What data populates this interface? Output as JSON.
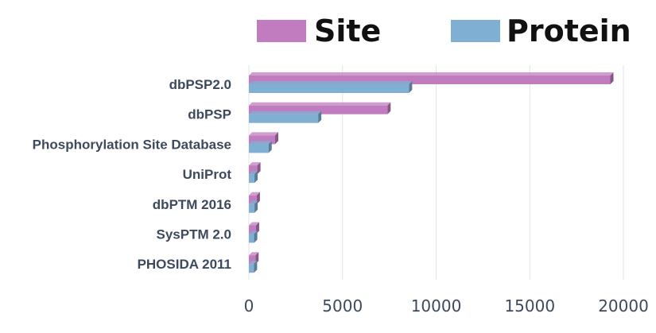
{
  "chart_data": {
    "type": "bar",
    "orientation": "horizontal",
    "categories": [
      "dbPSP2.0",
      "dbPSP",
      "Phosphorylation Site Database",
      "UniProt",
      "dbPTM 2016",
      "SysPTM 2.0",
      "PHOSIDA 2011"
    ],
    "series": [
      {
        "name": "Site",
        "values": [
          19300,
          7400,
          1400,
          450,
          420,
          380,
          350
        ],
        "color": "#c07cbf"
      },
      {
        "name": "Protein",
        "values": [
          8550,
          3700,
          1050,
          300,
          300,
          280,
          270
        ],
        "color": "#7fb0d4"
      }
    ],
    "xlim": [
      0,
      20000
    ],
    "xticks": [
      "0",
      "5000",
      "10000",
      "15000",
      "20000"
    ],
    "tick_values": [
      0,
      5000,
      10000,
      15000,
      20000
    ],
    "grid": true,
    "legend_position": "top"
  }
}
